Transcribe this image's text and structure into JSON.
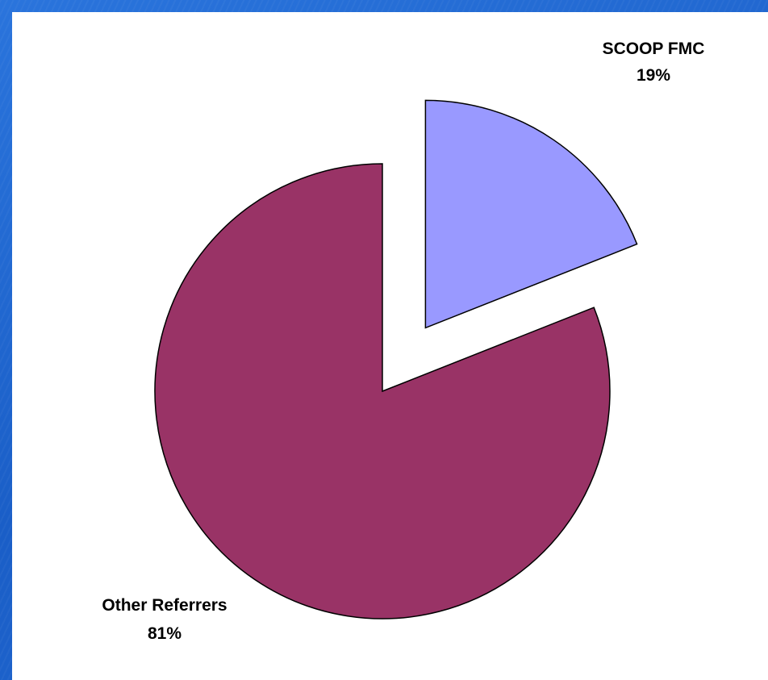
{
  "chart_data": {
    "type": "pie",
    "categories": [
      "SCOOP FMC",
      "Other Referrers"
    ],
    "values": [
      19,
      81
    ],
    "labels": [
      "19%",
      "81%"
    ],
    "exploded": [
      "SCOOP FMC"
    ],
    "start_angle": "12 o'clock, clockwise",
    "legend": "none",
    "colors": [
      "#9999ff",
      "#993366"
    ]
  }
}
